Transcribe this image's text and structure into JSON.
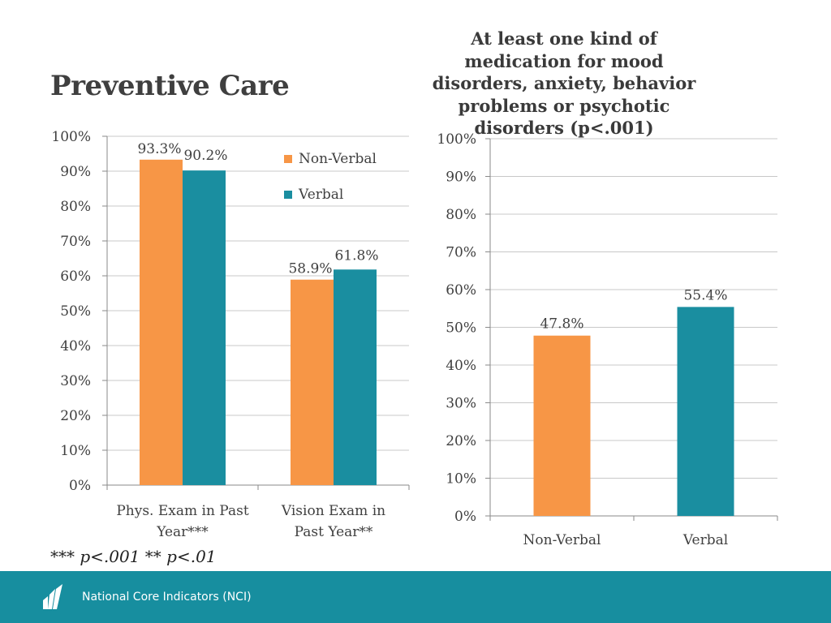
{
  "page_title": "Preventive Care",
  "footnote": "*** p<.001 ** p<.01",
  "footer": {
    "org": "National Core Indicators (NCI)"
  },
  "colors": {
    "non_verbal": "#f79646",
    "verbal": "#1a8ea0",
    "footer": "#178e9f"
  },
  "chart_data": [
    {
      "type": "bar",
      "title": "",
      "categories": [
        "Phys. Exam in Past Year***",
        "Vision Exam in Past Year**"
      ],
      "category_lines": [
        [
          "Phys. Exam in Past",
          "Year***"
        ],
        [
          "Vision Exam in",
          "Past Year**"
        ]
      ],
      "series": [
        {
          "name": "Non-Verbal",
          "values": [
            93.3,
            58.9
          ],
          "labels": [
            "93.3%",
            "58.9%"
          ]
        },
        {
          "name": "Verbal",
          "values": [
            90.2,
            61.8
          ],
          "labels": [
            "90.2%",
            "61.8%"
          ]
        }
      ],
      "yticks": [
        "0%",
        "10%",
        "20%",
        "30%",
        "40%",
        "50%",
        "60%",
        "70%",
        "80%",
        "90%",
        "100%"
      ],
      "ylim": [
        0,
        100
      ],
      "legend": "top-right",
      "grid": true
    },
    {
      "type": "bar",
      "title": "At least one kind of medication for mood disorders, anxiety, behavior problems or psychotic disorders (p<.001)",
      "categories": [
        "Non-Verbal",
        "Verbal"
      ],
      "values": [
        47.8,
        55.4
      ],
      "labels": [
        "47.8%",
        "55.4%"
      ],
      "yticks": [
        "0%",
        "10%",
        "20%",
        "30%",
        "40%",
        "50%",
        "60%",
        "70%",
        "80%",
        "90%",
        "100%"
      ],
      "ylim": [
        0,
        100
      ],
      "grid": true
    }
  ]
}
